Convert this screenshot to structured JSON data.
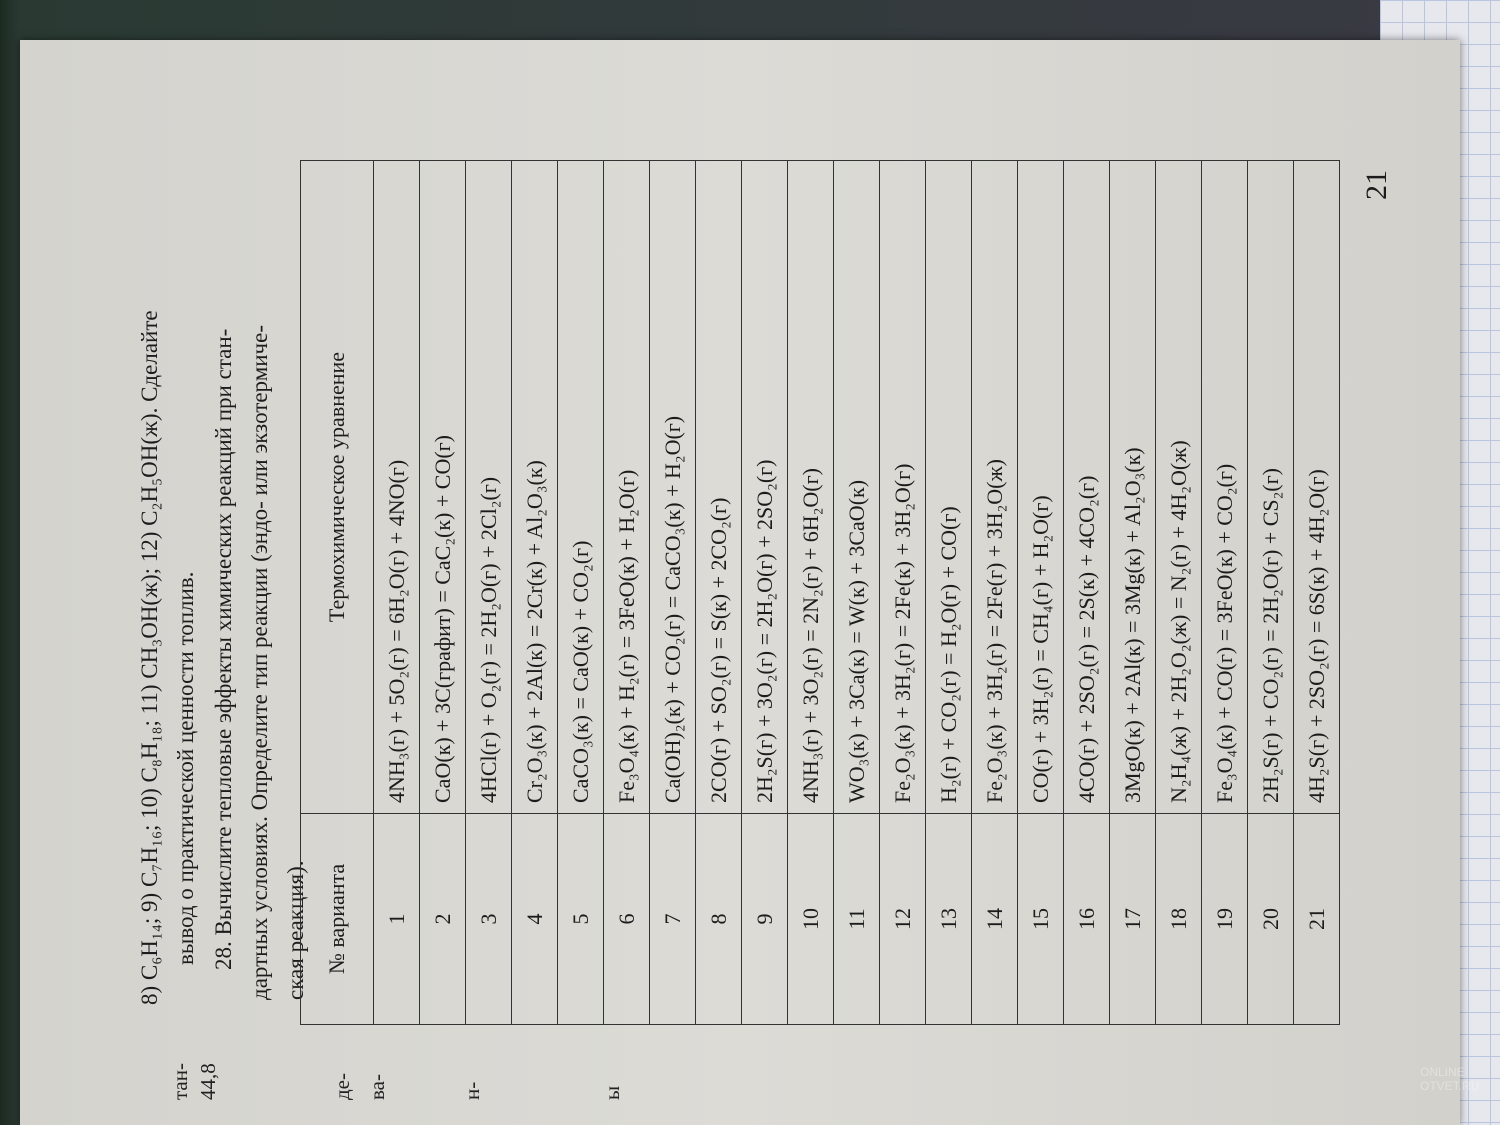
{
  "left_page_fragments": [
    "тан-",
    "44,8",
    "де-",
    "ва-",
    "н-",
    "ы"
  ],
  "intro_line1": "8) C₆H₁₄; 9) C₇H₁₆; 10) C₈H₁₈; 11) CH₃OH(ж); 12) C₂H₅OH(ж). Сделайте",
  "intro_line2": "вывод о практической ценности топлив.",
  "task_line1": "28. Вычислите тепловые эффекты химических реакций при стан-",
  "task_line2": "дартных условиях. Определите тип реакции (эндо- или экзотермиче-",
  "task_line3": "ская реакция).",
  "table": {
    "headers": [
      "№ варианта",
      "Термохимическое уравнение"
    ],
    "rows": [
      {
        "n": "1",
        "eq": "4NH₃(г) + 5O₂(г) = 6H₂O(г) + 4NO(г)"
      },
      {
        "n": "2",
        "eq": "CaO(к) + 3C(графит) = CaC₂(к) + CO(г)"
      },
      {
        "n": "3",
        "eq": "4HCl(г) + O₂(г) = 2H₂O(г) + 2Cl₂(г)"
      },
      {
        "n": "4",
        "eq": "Cr₂O₃(к) + 2Al(к) = 2Cr(к) + Al₂O₃(к)"
      },
      {
        "n": "5",
        "eq": "CaCO₃(к) = CaO(к) + CO₂(г)"
      },
      {
        "n": "6",
        "eq": "Fe₃O₄(к) + H₂(г) = 3FeO(к) + H₂O(г)"
      },
      {
        "n": "7",
        "eq": "Ca(OH)₂(к) + CO₂(г) = CaCO₃(к) + H₂O(г)"
      },
      {
        "n": "8",
        "eq": "2CO(г) + SO₂(г) = S(к) + 2CO₂(г)"
      },
      {
        "n": "9",
        "eq": "2H₂S(г) + 3O₂(г) = 2H₂O(г) + 2SO₂(г)"
      },
      {
        "n": "10",
        "eq": "4NH₃(г) + 3O₂(г) = 2N₂(г) + 6H₂O(г)"
      },
      {
        "n": "11",
        "eq": "WO₃(к) + 3Ca(к) = W(к) + 3CaO(к)"
      },
      {
        "n": "12",
        "eq": "Fe₂O₃(к) + 3H₂(г) = 2Fe(к) + 3H₂O(г)"
      },
      {
        "n": "13",
        "eq": "H₂(г) + CO₂(г) = H₂O(г) + CO(г)"
      },
      {
        "n": "14",
        "eq": "Fe₂O₃(к) + 3H₂(г) = 2Fe(г) + 3H₂O(ж)"
      },
      {
        "n": "15",
        "eq": "CO(г) + 3H₂(г) = CH₄(г) + H₂O(г)"
      },
      {
        "n": "16",
        "eq": "4CO(г) + 2SO₂(г) = 2S(к) + 4CO₂(г)"
      },
      {
        "n": "17",
        "eq": "3MgO(к) + 2Al(к) = 3Mg(к) + Al₂O₃(к)"
      },
      {
        "n": "18",
        "eq": "N₂H₄(ж) + 2H₂O₂(ж) = N₂(г) + 4H₂O(ж)"
      },
      {
        "n": "19",
        "eq": "Fe₃O₄(к) + CO(г) = 3FeO(к) + CO₂(г)"
      },
      {
        "n": "20",
        "eq": "2H₂S(г) + CO₂(г) = 2H₂O(г) + CS₂(г)"
      },
      {
        "n": "21",
        "eq": "4H₂S(г) + 2SO₂(г) = 6S(к) + 4H₂O(г)"
      }
    ]
  },
  "page_number": "21",
  "watermark": "ONLINE OTVET.RU"
}
